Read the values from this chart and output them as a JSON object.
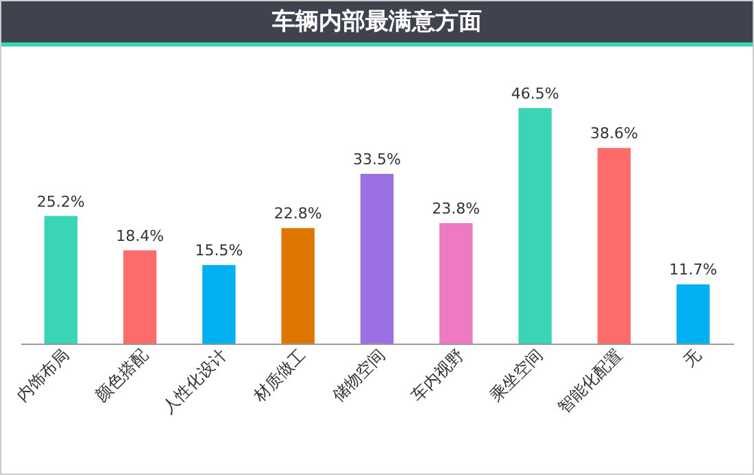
{
  "chart_data": {
    "type": "bar",
    "title": "车辆内部最满意方面",
    "categories": [
      "内饰布局",
      "颜色搭配",
      "人性化设计",
      "材质做工",
      "储物空间",
      "车内视野",
      "乘坐空间",
      "智能化配置",
      "无"
    ],
    "values": [
      25.2,
      18.4,
      15.5,
      22.8,
      33.5,
      23.8,
      46.5,
      38.6,
      11.7
    ],
    "value_labels": [
      "25.2%",
      "18.4%",
      "15.5%",
      "22.8%",
      "33.5%",
      "23.8%",
      "46.5%",
      "38.6%",
      "11.7%"
    ],
    "colors": [
      "#3ad5b5",
      "#fd6b6b",
      "#00b0f0",
      "#dc7600",
      "#9b70e3",
      "#ef79c2",
      "#3ad5b5",
      "#fd6b6b",
      "#00b0f0"
    ],
    "grid": false
  }
}
